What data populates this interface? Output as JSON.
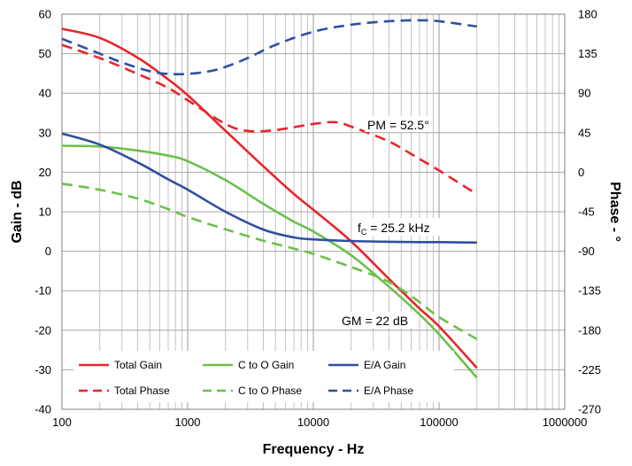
{
  "chart_data": {
    "type": "line",
    "xlabel": "Frequency - Hz",
    "ylabel": "Gain - dB",
    "y2label": "Phase - °",
    "x_scale": "log",
    "xlim": [
      100,
      1000000
    ],
    "ylim": [
      -40,
      60
    ],
    "y2lim": [
      -270,
      180
    ],
    "x_ticks": [
      100,
      1000,
      10000,
      100000,
      1000000
    ],
    "x_tick_labels": [
      "100",
      "1000",
      "10000",
      "100000",
      "1000000"
    ],
    "y_ticks": [
      -40,
      -30,
      -20,
      -10,
      0,
      10,
      20,
      30,
      40,
      50,
      60
    ],
    "y_tick_labels": [
      "-40",
      "-30",
      "-20",
      "-10",
      "0",
      "10",
      "20",
      "30",
      "40",
      "50",
      "60"
    ],
    "y2_ticks": [
      -270,
      -225,
      -180,
      -135,
      -90,
      -45,
      0,
      45,
      90,
      135,
      180
    ],
    "y2_tick_labels": [
      "-270",
      "-225",
      "-180",
      "-135",
      "-90",
      "-45",
      "0",
      "45",
      "90",
      "135",
      "180"
    ],
    "grid": true,
    "legend_position": "bottom-inside",
    "series": [
      {
        "name": "Total Gain",
        "axis": "left",
        "color": "#e8262b",
        "dash": "solid",
        "x": [
          100,
          200,
          400,
          700,
          1000,
          2000,
          4000,
          7000,
          10000,
          20000,
          40000,
          70000,
          100000,
          200000
        ],
        "y": [
          56.3,
          54.0,
          49.0,
          43.5,
          39.5,
          30.5,
          21.5,
          14.5,
          10.5,
          2.5,
          -7.0,
          -14.5,
          -19.0,
          -29.5
        ]
      },
      {
        "name": "C to O Gain",
        "axis": "left",
        "color": "#6cc04a",
        "dash": "solid",
        "x": [
          100,
          200,
          400,
          700,
          1000,
          2000,
          4000,
          7000,
          10000,
          20000,
          40000,
          70000,
          100000,
          200000
        ],
        "y": [
          26.7,
          26.5,
          25.5,
          24.2,
          22.8,
          18.0,
          12.0,
          7.5,
          5.0,
          -1.0,
          -9.0,
          -16.0,
          -21.0,
          -32.0
        ]
      },
      {
        "name": "E/A Gain",
        "axis": "left",
        "color": "#2f4fa2",
        "dash": "solid",
        "x": [
          100,
          200,
          400,
          700,
          1000,
          2000,
          4000,
          7000,
          10000,
          20000,
          40000,
          70000,
          100000,
          200000
        ],
        "y": [
          29.8,
          27.0,
          22.5,
          18.2,
          15.6,
          10.0,
          5.5,
          3.5,
          3.0,
          2.6,
          2.4,
          2.3,
          2.3,
          2.2
        ]
      },
      {
        "name": "Total Phase",
        "axis": "right",
        "color": "#e8262b",
        "dash": "dashed",
        "x": [
          100,
          200,
          400,
          700,
          1000,
          2000,
          3000,
          5000,
          10000,
          15000,
          20000,
          40000,
          70000,
          100000,
          200000
        ],
        "y": [
          145,
          130,
          112,
          96,
          82,
          55,
          47,
          48,
          55,
          57,
          52,
          35,
          15,
          2,
          -25
        ]
      },
      {
        "name": "C to O Phase",
        "axis": "right",
        "color": "#6cc04a",
        "dash": "dashed",
        "x": [
          100,
          200,
          400,
          700,
          1000,
          2000,
          4000,
          7000,
          10000,
          20000,
          40000,
          70000,
          100000,
          200000
        ],
        "y": [
          -13,
          -20,
          -30,
          -42,
          -51,
          -65,
          -78,
          -87,
          -93,
          -108,
          -125,
          -148,
          -165,
          -190
        ]
      },
      {
        "name": "E/A Phase",
        "axis": "right",
        "color": "#2f4fa2",
        "dash": "dashed",
        "x": [
          100,
          200,
          300,
          500,
          700,
          1000,
          1500,
          2000,
          3000,
          5000,
          10000,
          20000,
          40000,
          70000,
          100000,
          200000
        ],
        "y": [
          152,
          135,
          125,
          115,
          112,
          112,
          115,
          120,
          130,
          145,
          160,
          168,
          172,
          173,
          172,
          166
        ]
      }
    ],
    "annotations": [
      {
        "id": "pm",
        "text": "PM = 52.5°"
      },
      {
        "id": "fc",
        "main": "f",
        "sub": "C",
        "text": " = 25.2 kHz"
      },
      {
        "id": "gm",
        "text": "GM = 22 dB"
      }
    ]
  }
}
